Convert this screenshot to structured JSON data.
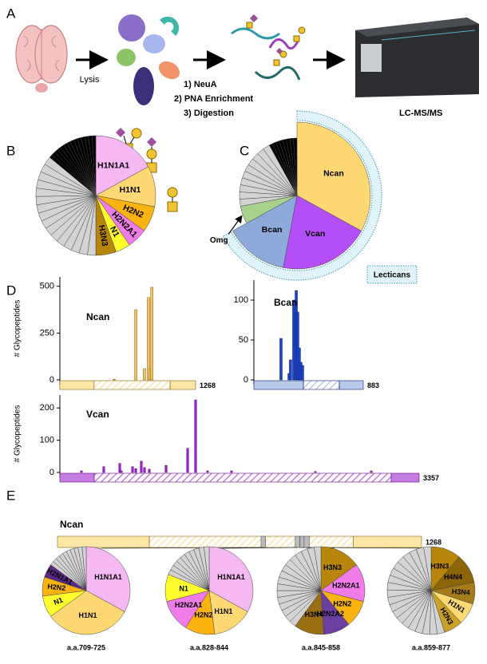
{
  "panel_labels": [
    "A",
    "B",
    "C",
    "D",
    "E"
  ],
  "workflow": {
    "steps": [
      "Lysis",
      "1) NeuA",
      "2) PNA Enrichment",
      "3) Digestion",
      "LC-MS/MS"
    ]
  },
  "chart_data": [
    {
      "type": "pie",
      "categories": [
        "H1N1A1",
        "H1N1",
        "H2N2",
        "H2N2A1",
        "N1",
        "H3N3",
        null,
        null,
        null,
        null,
        null,
        null,
        null,
        null,
        null,
        null,
        null,
        null,
        null,
        null,
        null,
        null,
        null,
        null,
        null,
        null,
        null,
        null,
        null,
        null,
        null,
        null,
        null,
        null,
        null,
        null
      ],
      "values": [
        17,
        11,
        7,
        5.5,
        4,
        5.5,
        2.25,
        2.25,
        2.25,
        2.25,
        2.25,
        2.25,
        2.25,
        2.25,
        2.25,
        2.25,
        2.25,
        2.25,
        2.25,
        2.25,
        2.25,
        2.25,
        1,
        1,
        1,
        1,
        1,
        1,
        1,
        1,
        1,
        1,
        1,
        1,
        1,
        1
      ],
      "colors": [
        "#f6b8f2",
        "#fdd873",
        "#fbb40f",
        "#f07ce9",
        "#ffff2e",
        "#b8860b",
        "#d3d3d3",
        "#d3d3d3",
        "#d3d3d3",
        "#d3d3d3",
        "#d3d3d3",
        "#d3d3d3",
        "#d3d3d3",
        "#d3d3d3",
        "#d3d3d3",
        "#d3d3d3",
        "#d3d3d3",
        "#d3d3d3",
        "#d3d3d3",
        "#d3d3d3",
        "#d3d3d3",
        "#d3d3d3",
        "#000000",
        "#000000",
        "#000000",
        "#000000",
        "#000000",
        "#000000",
        "#000000",
        "#000000",
        "#000000",
        "#000000",
        "#000000",
        "#000000",
        "#000000",
        "#000000"
      ]
    },
    {
      "type": "pie",
      "categories": [
        "Ncan",
        "Vcan",
        "Bcan",
        "Omg",
        null,
        null,
        null,
        null,
        null,
        null,
        null,
        null,
        null,
        null,
        null,
        null,
        null,
        null,
        null,
        null,
        null,
        null
      ],
      "values": [
        33,
        20,
        14,
        5,
        2,
        2,
        2,
        2,
        2,
        2,
        2,
        2,
        2,
        2,
        1,
        1,
        1,
        1,
        1,
        1,
        1,
        1
      ],
      "colors": [
        "#fdd873",
        "#b44ff7",
        "#8eaadb",
        "#a9d18e",
        "#d3d3d3",
        "#d3d3d3",
        "#d3d3d3",
        "#d3d3d3",
        "#d3d3d3",
        "#d3d3d3",
        "#d3d3d3",
        "#d3d3d3",
        "#d3d3d3",
        "#d3d3d3",
        "#000000",
        "#000000",
        "#000000",
        "#000000",
        "#000000",
        "#000000",
        "#000000",
        "#000000"
      ],
      "bracket_label": "Lecticans"
    },
    {
      "type": "bar",
      "title": "Ncan",
      "ylabel": "# Glycopeptides",
      "x": [
        507,
        709,
        790,
        828,
        845,
        859
      ],
      "values": [
        3,
        375,
        60,
        440,
        60,
        495
      ],
      "xlim": [
        0,
        1268
      ],
      "xticks": [
        1268
      ],
      "ylim": [
        0,
        550
      ],
      "yticks": [
        0,
        250,
        500
      ],
      "color": "#f0c463",
      "edgecolor": "#8a6010",
      "domain_color": "#fde7a6",
      "domains": [
        [
          0,
          320
        ],
        [
          320,
          1030
        ],
        [
          1030,
          1268
        ]
      ]
    },
    {
      "type": "bar",
      "title": "Bcan",
      "x": [
        219,
        284,
        296,
        322,
        342,
        354,
        367,
        380,
        393
      ],
      "values": [
        52,
        8,
        25,
        100,
        112,
        85,
        40,
        22,
        18
      ],
      "xlim": [
        0,
        883
      ],
      "xticks": [
        883
      ],
      "ylim": [
        0,
        125
      ],
      "yticks": [
        0,
        50,
        100
      ],
      "color": "#1f44c8",
      "edgecolor": "#0a1f70",
      "domain_color": "#b9c9e9",
      "domains": [
        [
          0,
          400
        ],
        [
          400,
          690
        ],
        [
          690,
          883
        ]
      ]
    },
    {
      "type": "bar",
      "title": "Vcan",
      "ylabel": "# Glycopeptides",
      "x": [
        201,
        410,
        560,
        574,
        679,
        709,
        761,
        791,
        836,
        992,
        1194,
        1268,
        1380,
        1604,
        2387,
        2909
      ],
      "values": [
        5,
        18,
        28,
        5,
        18,
        12,
        35,
        15,
        10,
        22,
        75,
        225,
        5,
        5,
        3,
        5
      ],
      "xlim": [
        0,
        3357
      ],
      "xticks": [
        3357
      ],
      "ylim": [
        0,
        240
      ],
      "yticks": [
        0,
        100,
        200
      ],
      "color": "#a21fd6",
      "edgecolor": "#5a0a7a",
      "domain_color": "#c57ce3",
      "domains": [
        [
          0,
          321
        ],
        [
          321,
          3096
        ],
        [
          3096,
          3357
        ]
      ]
    },
    {
      "type": "domain",
      "title": "Ncan",
      "xlim": [
        0,
        1268
      ],
      "xticks": [
        1268
      ],
      "domain_color": "#fde7a6",
      "edgecolor": "#8a6010",
      "site_color": "#bdbdbd",
      "domains": [
        [
          0,
          320
        ],
        [
          320,
          1030
        ],
        [
          1030,
          1268
        ]
      ],
      "sites": [
        [
          709,
          725
        ],
        [
          828,
          844
        ],
        [
          845,
          858
        ],
        [
          859,
          877
        ]
      ]
    },
    {
      "type": "pie",
      "title": "a.a.709-725",
      "categories": [
        "H1N1A1",
        "H1N1",
        "N1",
        "H2N2",
        "H2N1A1",
        null,
        null,
        null,
        null,
        null,
        null,
        null,
        null,
        null,
        null
      ],
      "values": [
        33,
        32,
        8,
        7,
        5,
        1.5,
        1.5,
        1.5,
        1.5,
        1.5,
        1.5,
        1.5,
        1.5,
        1.5,
        1.5
      ],
      "colors": [
        "#f6b8f2",
        "#fdd873",
        "#ffff2e",
        "#fbb40f",
        "#5b2a86",
        "#d3d3d3",
        "#d3d3d3",
        "#d3d3d3",
        "#d3d3d3",
        "#d3d3d3",
        "#d3d3d3",
        "#d3d3d3",
        "#d3d3d3",
        "#d3d3d3",
        "#d3d3d3"
      ]
    },
    {
      "type": "pie",
      "title": "a.a.828-844",
      "categories": [
        "H1N1A1",
        "H1N1",
        "H2N2",
        "H2N2A1",
        "N1",
        null,
        null,
        null,
        null,
        null,
        null,
        null,
        null,
        null,
        null
      ],
      "values": [
        33,
        15,
        11,
        12,
        10,
        1.9,
        1.9,
        1.9,
        1.9,
        1.9,
        1.9,
        1.9,
        1.9,
        1.9,
        1.9
      ],
      "colors": [
        "#f6b8f2",
        "#fdd873",
        "#fbb40f",
        "#f07ce9",
        "#ffff2e",
        "#d3d3d3",
        "#d3d3d3",
        "#d3d3d3",
        "#d3d3d3",
        "#d3d3d3",
        "#d3d3d3",
        "#d3d3d3",
        "#d3d3d3",
        "#d3d3d3",
        "#d3d3d3"
      ]
    },
    {
      "type": "pie",
      "title": "a.a.845-858",
      "categories": [
        "H3N3",
        "H2N2A1",
        "H2N2",
        "H2N2A2",
        "H3N4",
        null,
        null,
        null,
        null,
        null,
        null,
        null,
        null,
        null,
        null,
        null,
        null,
        null,
        null,
        null,
        null
      ],
      "values": [
        15,
        14,
        10,
        10,
        11,
        2.5,
        2.5,
        2.5,
        2.5,
        2.5,
        2.5,
        2.5,
        2.5,
        2.5,
        2.5,
        2.5,
        2.5,
        2.5,
        2.5,
        2.5,
        2.5
      ],
      "colors": [
        "#b8860b",
        "#f07ce9",
        "#fbb40f",
        "#6b3fa0",
        "#9a6f14",
        "#d3d3d3",
        "#d3d3d3",
        "#d3d3d3",
        "#d3d3d3",
        "#d3d3d3",
        "#d3d3d3",
        "#d3d3d3",
        "#d3d3d3",
        "#d3d3d3",
        "#d3d3d3",
        "#d3d3d3",
        "#d3d3d3",
        "#d3d3d3",
        "#d3d3d3",
        "#d3d3d3",
        "#d3d3d3"
      ]
    },
    {
      "type": "pie",
      "title": "a.a.859-877",
      "categories": [
        "H3N3",
        "H4N4",
        "H3N4",
        "H1N1",
        "H2N3",
        null,
        null,
        null,
        null,
        null,
        null,
        null,
        null,
        null,
        null,
        null,
        null,
        null,
        null,
        null,
        null,
        null,
        null,
        null,
        null
      ],
      "values": [
        11,
        11,
        8,
        8,
        7,
        2.75,
        2.75,
        2.75,
        2.75,
        2.75,
        2.75,
        2.75,
        2.75,
        2.75,
        2.75,
        2.75,
        2.75,
        2.75,
        2.75,
        2.75,
        2.75,
        2.75,
        2.75,
        2.75,
        2.75
      ],
      "colors": [
        "#b8860b",
        "#8b6508",
        "#a67c1a",
        "#fdd873",
        "#c9a227",
        "#d3d3d3",
        "#d3d3d3",
        "#d3d3d3",
        "#d3d3d3",
        "#d3d3d3",
        "#d3d3d3",
        "#d3d3d3",
        "#d3d3d3",
        "#d3d3d3",
        "#d3d3d3",
        "#d3d3d3",
        "#d3d3d3",
        "#d3d3d3",
        "#d3d3d3",
        "#d3d3d3",
        "#d3d3d3",
        "#d3d3d3",
        "#d3d3d3",
        "#d3d3d3",
        "#d3d3d3"
      ]
    }
  ]
}
